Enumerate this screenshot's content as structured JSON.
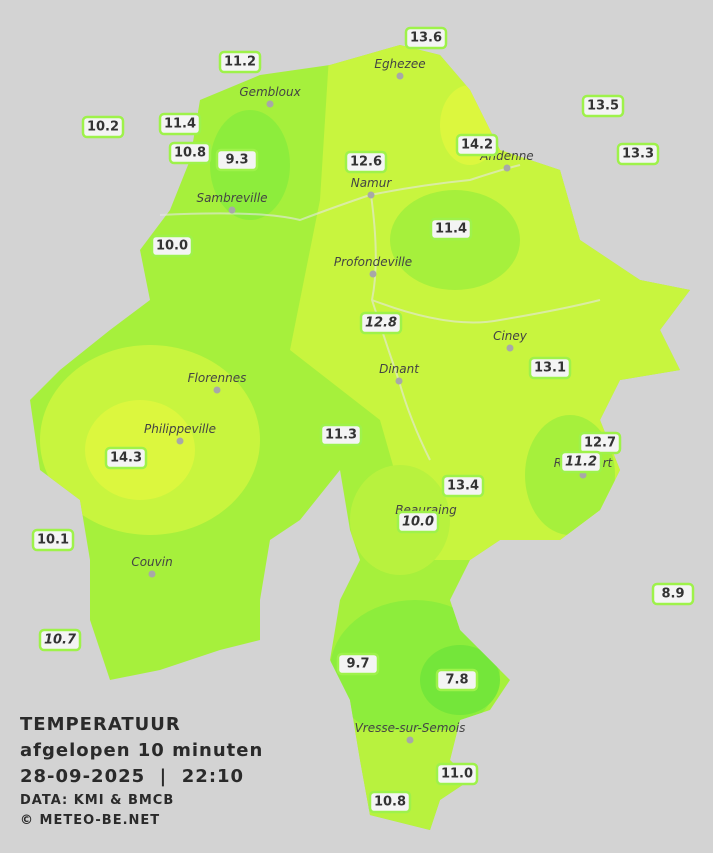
{
  "stations": [
    {
      "label": "11.2"
    },
    {
      "label": "13.6"
    },
    {
      "label": "13.5"
    },
    {
      "label": "10.2"
    },
    {
      "label": "11.4"
    },
    {
      "label": "10.8"
    },
    {
      "label": "9.3"
    },
    {
      "label": "12.6"
    },
    {
      "label": "14.2"
    },
    {
      "label": "13.3"
    },
    {
      "label": "10.0"
    },
    {
      "label": "11.4"
    },
    {
      "label": "12.8",
      "italic": true
    },
    {
      "label": "13.1"
    },
    {
      "label": "11.3"
    },
    {
      "label": "12.7"
    },
    {
      "label": "11.2",
      "italic": true
    },
    {
      "label": "14.3"
    },
    {
      "label": "13.4"
    },
    {
      "label": "10.0",
      "italic": true
    },
    {
      "label": "10.1"
    },
    {
      "label": "8.9"
    },
    {
      "label": "10.7",
      "italic": true
    },
    {
      "label": "9.7"
    },
    {
      "label": "7.8"
    },
    {
      "label": "11.0"
    },
    {
      "label": "10.8"
    }
  ],
  "towns": [
    "Eghezee",
    "Gembloux",
    "Andenne",
    "Namur",
    "Sambreville",
    "Profondeville",
    "Ciney",
    "Dinant",
    "Florennes",
    "Philippeville",
    "Rochefort",
    "Beauraing",
    "Couvin",
    "Vresse-sur-Semois"
  ],
  "legend": {
    "title": "TEMPERATUUR",
    "period": "afgelopen 10 minuten",
    "datetime": "28-09-2025  |  22:10",
    "source": "DATA: KMI & BMCB",
    "copyright": "© METEO-BE.NET"
  }
}
